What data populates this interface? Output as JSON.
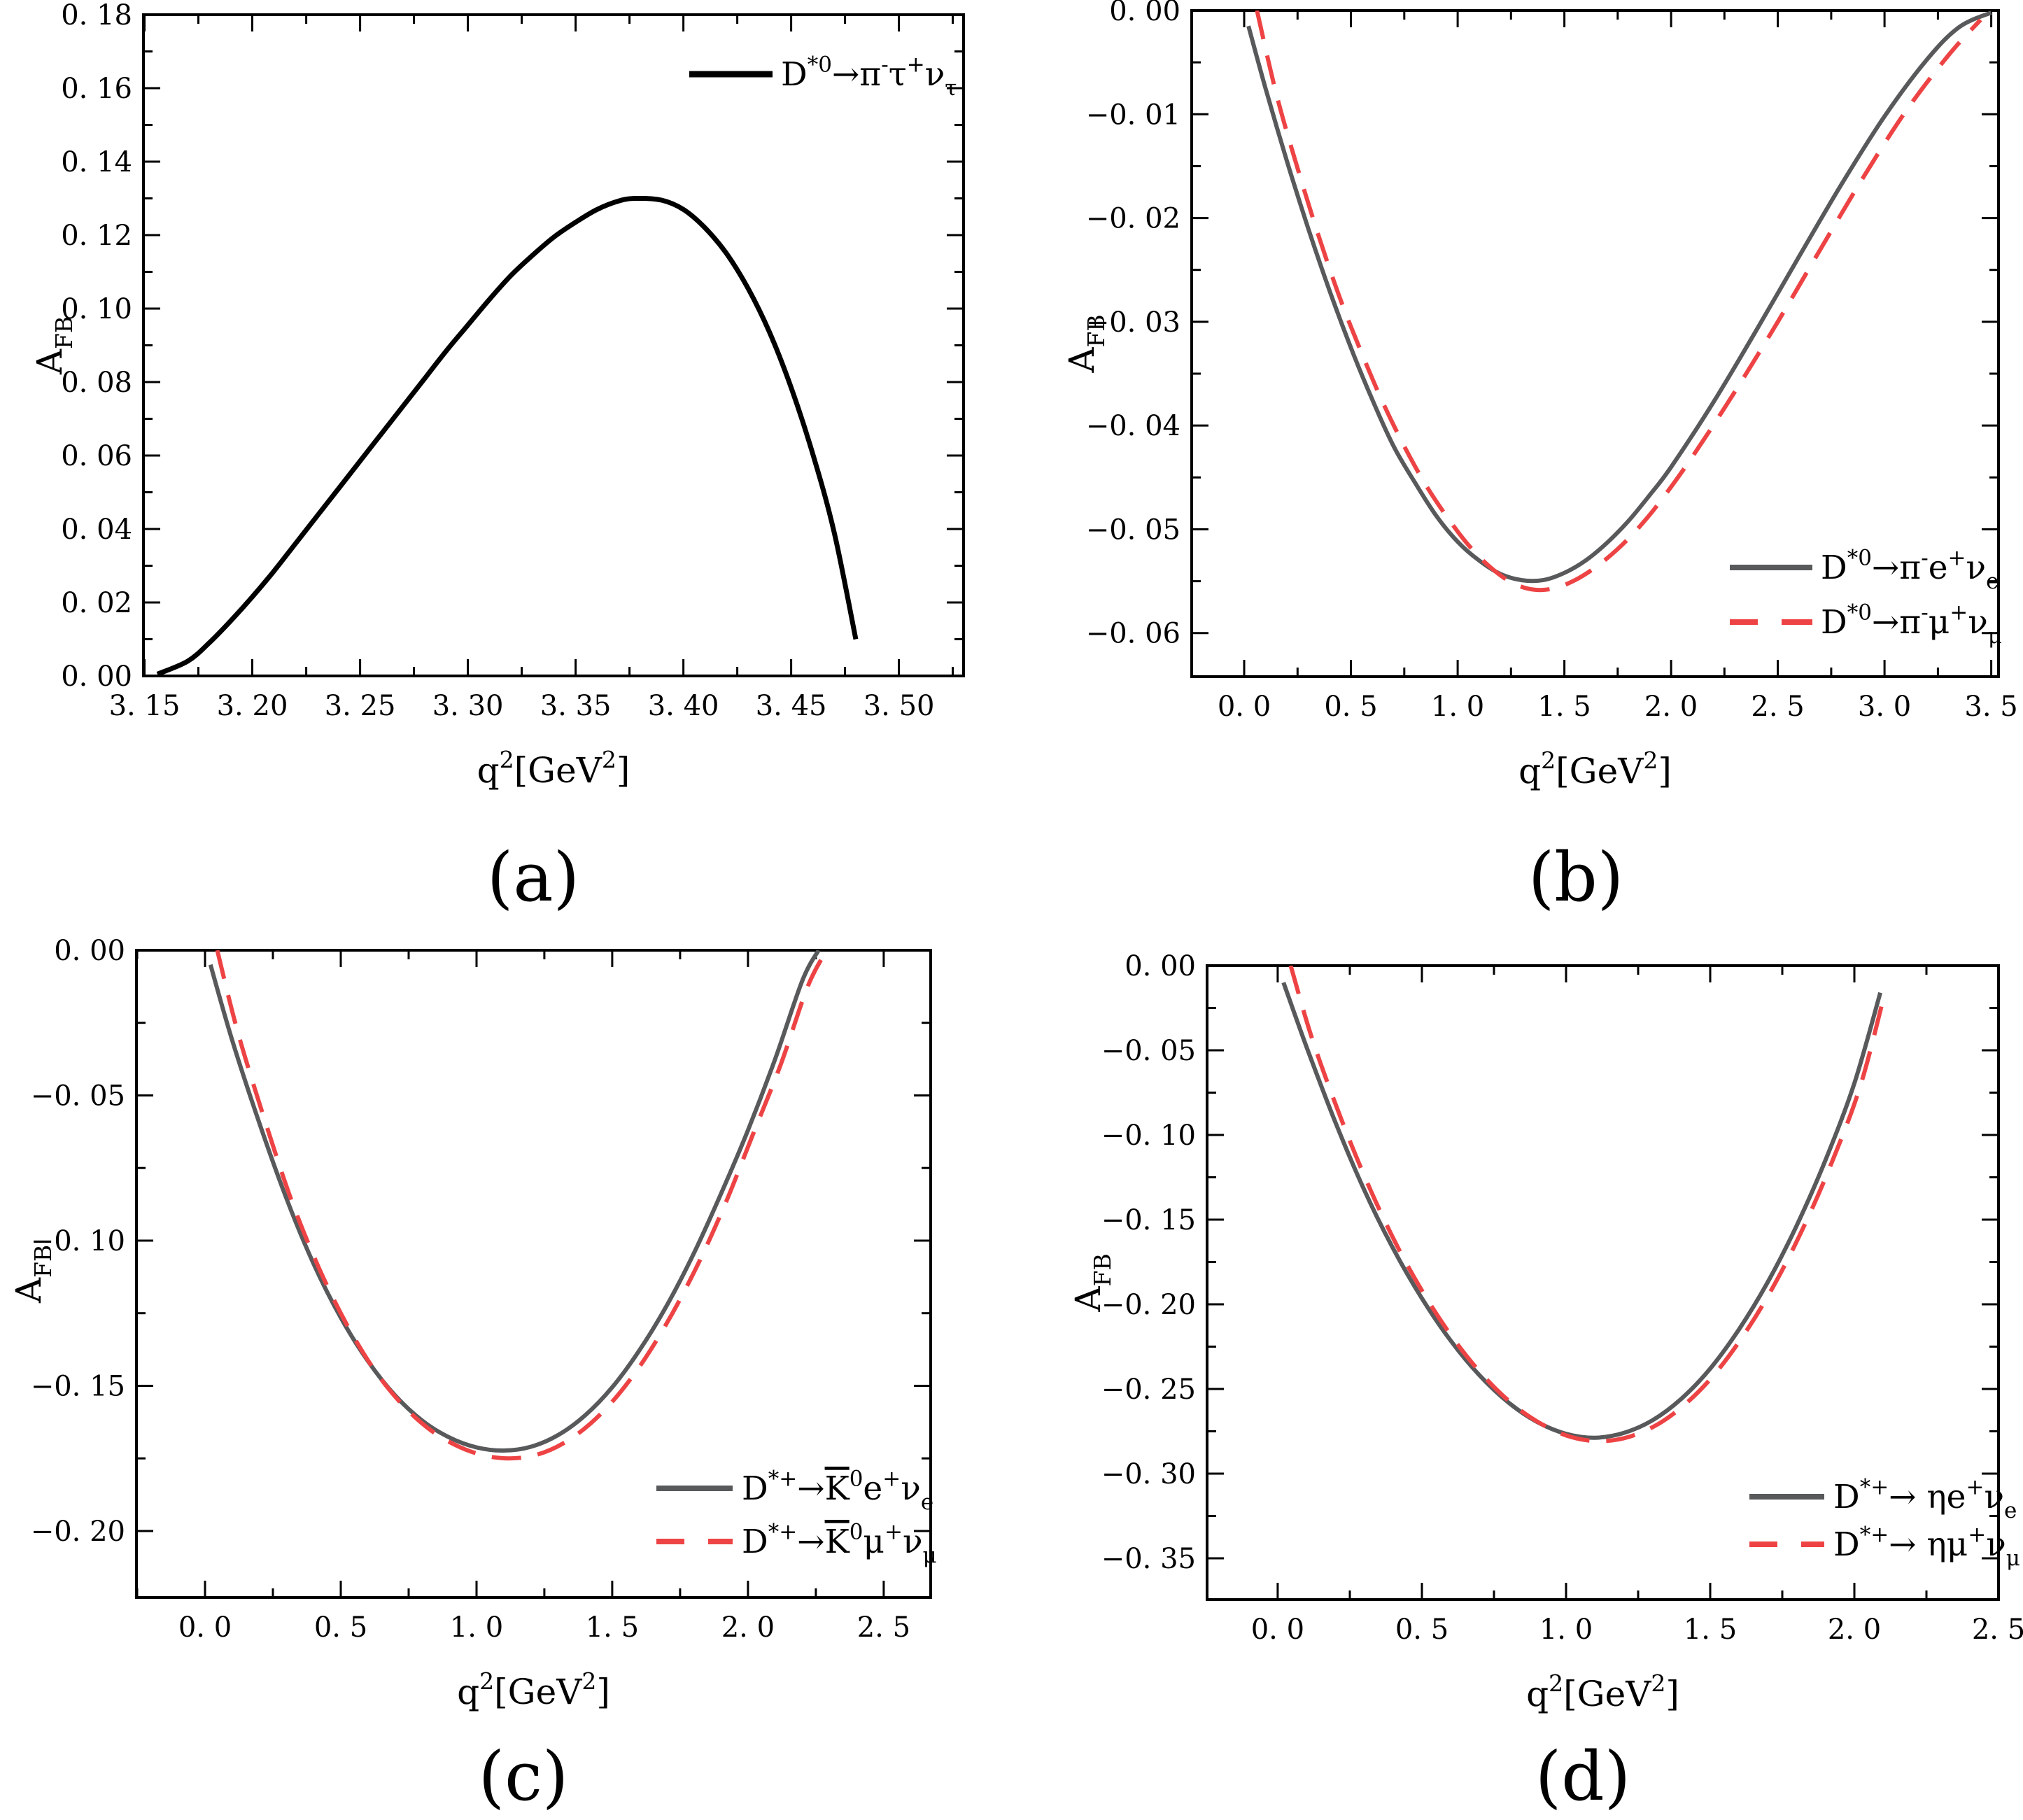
{
  "figure": {
    "background": "#ffffff",
    "axis_color": "#000000",
    "palette": {
      "black": "#000000",
      "gray": "#58595B",
      "red": "#EE4344"
    }
  },
  "chart_data": [
    {
      "id": "a",
      "type": "line",
      "caption": "(a)",
      "xlabel": "q^{2}[GeV^{2}]",
      "ylabel": "A_{FB}",
      "xlim": [
        3.1495,
        3.53
      ],
      "ylim": [
        0,
        0.18
      ],
      "grid": false,
      "xticks": {
        "values": [
          3.15,
          3.2,
          3.25,
          3.3,
          3.35,
          3.4,
          3.45,
          3.5
        ],
        "labels": [
          "3. 15",
          "3. 20",
          "3. 25",
          "3. 30",
          "3. 35",
          "3. 40",
          "3. 45",
          "3. 50"
        ]
      },
      "yticks": {
        "values": [
          0.0,
          0.02,
          0.04,
          0.06,
          0.08,
          0.1,
          0.12,
          0.14,
          0.16,
          0.18
        ],
        "labels": [
          "0. 00",
          "0. 02",
          "0. 04",
          "0. 06",
          "0. 08",
          "0. 10",
          "0. 12",
          "0. 14",
          "0. 16",
          "0. 18"
        ]
      },
      "xminor_step": 0.025,
      "yminor_step": 0.01,
      "legend_position": "top-right",
      "series": [
        {
          "label": "D^{*0}→π^{-}τ^{+}ν_{τ}",
          "color": "#000000",
          "style": "solid",
          "points": [
            [
              3.156,
              0.0005
            ],
            [
              3.17,
              0.004
            ],
            [
              3.18,
              0.009
            ],
            [
              3.19,
              0.015
            ],
            [
              3.2,
              0.0215
            ],
            [
              3.21,
              0.0285
            ],
            [
              3.22,
              0.036
            ],
            [
              3.23,
              0.0435
            ],
            [
              3.24,
              0.051
            ],
            [
              3.25,
              0.0585
            ],
            [
              3.26,
              0.066
            ],
            [
              3.27,
              0.0735
            ],
            [
              3.28,
              0.081
            ],
            [
              3.29,
              0.0885
            ],
            [
              3.3,
              0.0955
            ],
            [
              3.31,
              0.1025
            ],
            [
              3.32,
              0.109
            ],
            [
              3.33,
              0.1145
            ],
            [
              3.34,
              0.1195
            ],
            [
              3.35,
              0.1235
            ],
            [
              3.36,
              0.127
            ],
            [
              3.37,
              0.1293
            ],
            [
              3.378,
              0.13
            ],
            [
              3.39,
              0.1295
            ],
            [
              3.4,
              0.127
            ],
            [
              3.41,
              0.122
            ],
            [
              3.42,
              0.115
            ],
            [
              3.43,
              0.1055
            ],
            [
              3.44,
              0.0935
            ],
            [
              3.45,
              0.0785
            ],
            [
              3.46,
              0.0605
            ],
            [
              3.47,
              0.039
            ],
            [
              3.48,
              0.01
            ]
          ]
        }
      ]
    },
    {
      "id": "b",
      "type": "line",
      "caption": "(b)",
      "xlabel": "q^{2}[GeV^{2}]",
      "ylabel": "A_{FB}",
      "xlim": [
        -0.246,
        3.534
      ],
      "ylim": [
        -0.0642,
        0
      ],
      "grid": false,
      "xticks": {
        "values": [
          0.0,
          0.5,
          1.0,
          1.5,
          2.0,
          2.5,
          3.0,
          3.5
        ],
        "labels": [
          "0. 0",
          "0. 5",
          "1. 0",
          "1. 5",
          "2. 0",
          "2. 5",
          "3. 0",
          "3. 5"
        ]
      },
      "yticks": {
        "values": [
          0.0,
          -0.01,
          -0.02,
          -0.03,
          -0.04,
          -0.05,
          -0.06
        ],
        "labels": [
          "0. 00",
          "−0. 01",
          "−0. 02",
          "−0. 03",
          "−0. 04",
          "−0. 05",
          "−0. 06"
        ]
      },
      "xminor_step": 0.25,
      "yminor_step": 0.005,
      "legend_position": "bottom-right",
      "series": [
        {
          "label": "D^{*0}→π^{-}e^{+}ν_{e}",
          "color": "#58595B",
          "style": "solid",
          "points": [
            [
              0.02,
              -0.0015
            ],
            [
              0.1,
              -0.0075
            ],
            [
              0.2,
              -0.0145
            ],
            [
              0.3,
              -0.021
            ],
            [
              0.4,
              -0.027
            ],
            [
              0.5,
              -0.0325
            ],
            [
              0.6,
              -0.0375
            ],
            [
              0.7,
              -0.042
            ],
            [
              0.8,
              -0.0455
            ],
            [
              0.9,
              -0.0487
            ],
            [
              1.0,
              -0.0512
            ],
            [
              1.1,
              -0.053
            ],
            [
              1.2,
              -0.0543
            ],
            [
              1.3,
              -0.0549
            ],
            [
              1.4,
              -0.0549
            ],
            [
              1.5,
              -0.0542
            ],
            [
              1.6,
              -0.053
            ],
            [
              1.7,
              -0.0513
            ],
            [
              1.8,
              -0.0492
            ],
            [
              1.9,
              -0.0467
            ],
            [
              2.0,
              -0.044
            ],
            [
              2.2,
              -0.0377
            ],
            [
              2.4,
              -0.0308
            ],
            [
              2.6,
              -0.0237
            ],
            [
              2.8,
              -0.0167
            ],
            [
              3.0,
              -0.0102
            ],
            [
              3.2,
              -0.0047
            ],
            [
              3.35,
              -0.0016
            ],
            [
              3.5,
              -0.0002
            ]
          ]
        },
        {
          "label": "D^{*0}→π^{-}μ^{+}ν_{μ}",
          "color": "#EE4344",
          "style": "dashed",
          "points": [
            [
              0.06,
              0.0
            ],
            [
              0.15,
              -0.008
            ],
            [
              0.25,
              -0.0152
            ],
            [
              0.35,
              -0.0218
            ],
            [
              0.45,
              -0.0278
            ],
            [
              0.55,
              -0.033
            ],
            [
              0.65,
              -0.0378
            ],
            [
              0.75,
              -0.042
            ],
            [
              0.85,
              -0.0457
            ],
            [
              0.95,
              -0.0488
            ],
            [
              1.05,
              -0.0515
            ],
            [
              1.15,
              -0.0536
            ],
            [
              1.25,
              -0.0551
            ],
            [
              1.35,
              -0.0558
            ],
            [
              1.45,
              -0.0557
            ],
            [
              1.55,
              -0.0549
            ],
            [
              1.65,
              -0.0536
            ],
            [
              1.75,
              -0.0519
            ],
            [
              1.85,
              -0.0498
            ],
            [
              1.95,
              -0.0473
            ],
            [
              2.1,
              -0.043
            ],
            [
              2.3,
              -0.0367
            ],
            [
              2.5,
              -0.03
            ],
            [
              2.7,
              -0.023
            ],
            [
              2.9,
              -0.0161
            ],
            [
              3.1,
              -0.0097
            ],
            [
              3.3,
              -0.0043
            ],
            [
              3.45,
              -0.0009
            ]
          ]
        }
      ]
    },
    {
      "id": "c",
      "type": "line",
      "caption": "(c)",
      "xlabel": "q^{2}[GeV^{2}]",
      "ylabel": "A_{FB}",
      "xlim": [
        -0.2526,
        2.673
      ],
      "ylim": [
        -0.2229,
        0
      ],
      "grid": false,
      "xticks": {
        "values": [
          0.0,
          0.5,
          1.0,
          1.5,
          2.0,
          2.5
        ],
        "labels": [
          "0. 0",
          "0. 5",
          "1. 0",
          "1. 5",
          "2. 0",
          "2. 5"
        ]
      },
      "yticks": {
        "values": [
          0.0,
          -0.05,
          -0.1,
          -0.15,
          -0.2
        ],
        "labels": [
          "0. 00",
          "−0. 05",
          "−0. 10",
          "−0. 15",
          "−0. 20"
        ]
      },
      "xminor_step": 0.25,
      "yminor_step": 0.025,
      "legend_position": "bottom-right",
      "series": [
        {
          "label": "D^{*+}→~{K}^{0}e^{+}ν_{e}",
          "color": "#58595B",
          "style": "solid",
          "points": [
            [
              0.02,
              -0.005
            ],
            [
              0.1,
              -0.031
            ],
            [
              0.2,
              -0.0595
            ],
            [
              0.3,
              -0.0855
            ],
            [
              0.4,
              -0.108
            ],
            [
              0.5,
              -0.1265
            ],
            [
              0.6,
              -0.1415
            ],
            [
              0.7,
              -0.1533
            ],
            [
              0.8,
              -0.162
            ],
            [
              0.9,
              -0.1678
            ],
            [
              1.0,
              -0.1712
            ],
            [
              1.1,
              -0.1723
            ],
            [
              1.2,
              -0.171
            ],
            [
              1.3,
              -0.167
            ],
            [
              1.4,
              -0.1602
            ],
            [
              1.5,
              -0.1505
            ],
            [
              1.6,
              -0.1378
            ],
            [
              1.7,
              -0.1225
            ],
            [
              1.8,
              -0.1045
            ],
            [
              1.9,
              -0.084
            ],
            [
              2.0,
              -0.062
            ],
            [
              2.1,
              -0.0375
            ],
            [
              2.2,
              -0.0105
            ],
            [
              2.26,
              0.0
            ]
          ]
        },
        {
          "label": "D^{*+}→~{K}^{0}μ^{+}ν_{μ}",
          "color": "#EE4344",
          "style": "dashed",
          "points": [
            [
              0.045,
              0.0
            ],
            [
              0.12,
              -0.028
            ],
            [
              0.22,
              -0.0585
            ],
            [
              0.32,
              -0.0865
            ],
            [
              0.42,
              -0.1095
            ],
            [
              0.52,
              -0.1285
            ],
            [
              0.62,
              -0.144
            ],
            [
              0.72,
              -0.1558
            ],
            [
              0.82,
              -0.1645
            ],
            [
              0.92,
              -0.1703
            ],
            [
              1.02,
              -0.1738
            ],
            [
              1.12,
              -0.175
            ],
            [
              1.22,
              -0.1738
            ],
            [
              1.32,
              -0.1698
            ],
            [
              1.42,
              -0.163
            ],
            [
              1.52,
              -0.1533
            ],
            [
              1.62,
              -0.1407
            ],
            [
              1.72,
              -0.1253
            ],
            [
              1.82,
              -0.1073
            ],
            [
              1.92,
              -0.0865
            ],
            [
              2.02,
              -0.063
            ],
            [
              2.12,
              -0.0395
            ],
            [
              2.22,
              -0.0125
            ],
            [
              2.29,
              0.0
            ]
          ]
        }
      ]
    },
    {
      "id": "d",
      "type": "line",
      "caption": "(d)",
      "xlabel": "q^{2}[GeV^{2}]",
      "ylabel": "A_{FB}",
      "xlim": [
        -0.245,
        2.5
      ],
      "ylim": [
        -0.3744,
        0
      ],
      "grid": false,
      "xticks": {
        "values": [
          0.0,
          0.5,
          1.0,
          1.5,
          2.0,
          2.5
        ],
        "labels": [
          "0. 0",
          "0. 5",
          "1. 0",
          "1. 5",
          "2. 0",
          "2. 5"
        ]
      },
      "yticks": {
        "values": [
          0.0,
          -0.05,
          -0.1,
          -0.15,
          -0.2,
          -0.25,
          -0.3,
          -0.35
        ],
        "labels": [
          "0. 00",
          "−0. 05",
          "−0. 10",
          "−0. 15",
          "−0. 20",
          "−0. 25",
          "−0. 30",
          "−0. 35"
        ]
      },
      "xminor_step": 0.25,
      "yminor_step": 0.025,
      "legend_position": "bottom-right",
      "series": [
        {
          "label": "D^{*+}→ ηe^{+}ν_{e}",
          "color": "#58595B",
          "style": "solid",
          "points": [
            [
              0.02,
              -0.01
            ],
            [
              0.1,
              -0.048
            ],
            [
              0.2,
              -0.0925
            ],
            [
              0.3,
              -0.1325
            ],
            [
              0.4,
              -0.167
            ],
            [
              0.5,
              -0.1965
            ],
            [
              0.6,
              -0.2215
            ],
            [
              0.7,
              -0.242
            ],
            [
              0.8,
              -0.258
            ],
            [
              0.9,
              -0.2695
            ],
            [
              1.0,
              -0.2765
            ],
            [
              1.1,
              -0.2788
            ],
            [
              1.2,
              -0.276
            ],
            [
              1.3,
              -0.2685
            ],
            [
              1.4,
              -0.2558
            ],
            [
              1.5,
              -0.238
            ],
            [
              1.6,
              -0.2148
            ],
            [
              1.7,
              -0.1868
            ],
            [
              1.8,
              -0.1535
            ],
            [
              1.9,
              -0.1148
            ],
            [
              2.0,
              -0.0695
            ],
            [
              2.09,
              -0.016
            ]
          ]
        },
        {
          "label": "D^{*+}→ ημ^{+}ν_{μ}",
          "color": "#EE4344",
          "style": "dashed",
          "points": [
            [
              0.045,
              0.0
            ],
            [
              0.12,
              -0.0435
            ],
            [
              0.22,
              -0.0905
            ],
            [
              0.32,
              -0.1318
            ],
            [
              0.42,
              -0.1675
            ],
            [
              0.52,
              -0.1975
            ],
            [
              0.62,
              -0.2228
            ],
            [
              0.72,
              -0.2435
            ],
            [
              0.82,
              -0.2597
            ],
            [
              0.92,
              -0.2712
            ],
            [
              1.02,
              -0.2785
            ],
            [
              1.12,
              -0.2808
            ],
            [
              1.22,
              -0.2782
            ],
            [
              1.32,
              -0.2707
            ],
            [
              1.42,
              -0.258
            ],
            [
              1.52,
              -0.2403
            ],
            [
              1.62,
              -0.2172
            ],
            [
              1.72,
              -0.1892
            ],
            [
              1.82,
              -0.1558
            ],
            [
              1.92,
              -0.117
            ],
            [
              2.02,
              -0.0715
            ],
            [
              2.1,
              -0.02
            ]
          ]
        }
      ]
    }
  ]
}
